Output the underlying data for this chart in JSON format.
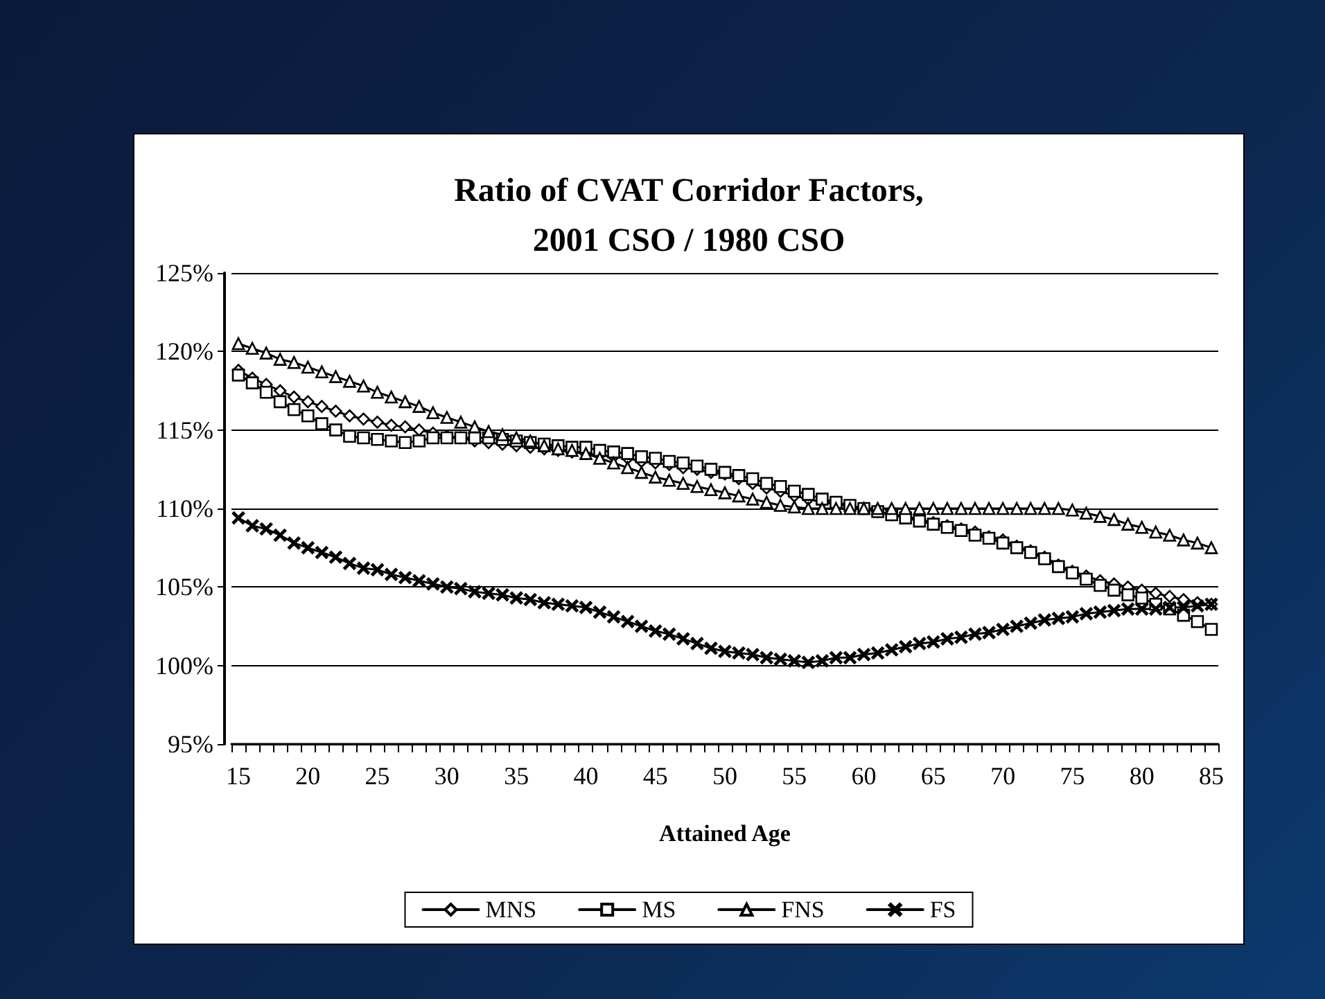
{
  "chart_data": {
    "type": "line",
    "title": "Ratio of CVAT Corridor Factors,\n2001 CSO / 1980 CSO",
    "xlabel": "Attained Age",
    "categories": [
      "15",
      null,
      null,
      null,
      null,
      "20",
      null,
      null,
      null,
      null,
      "25",
      null,
      null,
      null,
      null,
      "30",
      null,
      null,
      null,
      null,
      "35",
      null,
      null,
      null,
      null,
      "40",
      null,
      null,
      null,
      null,
      "45",
      null,
      null,
      null,
      null,
      "50",
      null,
      null,
      null,
      null,
      "55",
      null,
      null,
      null,
      null,
      "60",
      null,
      null,
      null,
      null,
      "65",
      null,
      null,
      null,
      null,
      "70",
      null,
      null,
      null,
      null,
      "75",
      null,
      null,
      null,
      null,
      "80",
      null,
      null,
      null,
      null,
      "85"
    ],
    "ylim": [
      95,
      125
    ],
    "yticks": [
      {
        "value": 95,
        "label": "95%"
      },
      {
        "value": 100,
        "label": "100%"
      },
      {
        "value": 105,
        "label": "105%"
      },
      {
        "value": 110,
        "label": "110%"
      },
      {
        "value": 115,
        "label": "115%"
      },
      {
        "value": 120,
        "label": "120%"
      },
      {
        "value": 125,
        "label": "125%"
      }
    ],
    "grid": "y",
    "legend": "bottom",
    "line_style": "solid",
    "series": [
      {
        "name": "MNS",
        "color": "#000000",
        "marker": "diamond",
        "values": [
          118.8,
          118.3,
          117.9,
          117.5,
          117.1,
          116.8,
          116.5,
          116.2,
          115.9,
          115.7,
          115.5,
          115.3,
          115.2,
          115.0,
          114.8,
          114.6,
          114.5,
          114.3,
          114.2,
          114.1,
          114.0,
          113.9,
          113.8,
          113.7,
          113.6,
          113.5,
          113.4,
          113.3,
          113.2,
          113.0,
          112.9,
          112.8,
          112.6,
          112.5,
          112.3,
          112.2,
          111.9,
          111.6,
          111.3,
          111.1,
          110.8,
          110.6,
          110.4,
          110.3,
          110.1,
          110.0,
          109.8,
          109.6,
          109.5,
          109.3,
          109.1,
          108.9,
          108.7,
          108.5,
          108.2,
          108.0,
          107.6,
          107.3,
          106.9,
          106.4,
          106.0,
          105.7,
          105.4,
          105.2,
          105.0,
          104.8,
          104.6,
          104.4,
          104.2,
          104.0,
          103.9
        ]
      },
      {
        "name": "MS",
        "color": "#000000",
        "marker": "square",
        "values": [
          118.5,
          118.0,
          117.4,
          116.8,
          116.3,
          115.9,
          115.4,
          115.0,
          114.6,
          114.5,
          114.4,
          114.3,
          114.2,
          114.3,
          114.5,
          114.5,
          114.5,
          114.5,
          114.5,
          114.4,
          114.3,
          114.2,
          114.1,
          114.0,
          113.9,
          113.9,
          113.7,
          113.6,
          113.5,
          113.3,
          113.2,
          113.0,
          112.9,
          112.7,
          112.5,
          112.3,
          112.1,
          111.9,
          111.6,
          111.4,
          111.1,
          110.9,
          110.6,
          110.4,
          110.2,
          110.0,
          109.8,
          109.6,
          109.4,
          109.2,
          109.0,
          108.8,
          108.6,
          108.3,
          108.1,
          107.8,
          107.5,
          107.2,
          106.8,
          106.3,
          105.9,
          105.5,
          105.1,
          104.8,
          104.5,
          104.3,
          103.9,
          103.6,
          103.2,
          102.8,
          102.3
        ]
      },
      {
        "name": "FNS",
        "color": "#000000",
        "marker": "triangle",
        "values": [
          120.5,
          120.2,
          119.9,
          119.5,
          119.3,
          119.0,
          118.7,
          118.4,
          118.1,
          117.8,
          117.4,
          117.1,
          116.8,
          116.5,
          116.1,
          115.8,
          115.5,
          115.2,
          114.9,
          114.7,
          114.5,
          114.3,
          114.0,
          113.8,
          113.7,
          113.5,
          113.2,
          112.9,
          112.6,
          112.3,
          112.0,
          111.8,
          111.6,
          111.4,
          111.2,
          111.0,
          110.8,
          110.6,
          110.4,
          110.2,
          110.1,
          110.0,
          110.0,
          110.0,
          110.0,
          110.0,
          110.0,
          110.0,
          110.0,
          110.0,
          110.0,
          110.0,
          110.0,
          110.0,
          110.0,
          110.0,
          110.0,
          110.0,
          110.0,
          110.0,
          109.9,
          109.7,
          109.5,
          109.3,
          109.0,
          108.8,
          108.5,
          108.3,
          108.0,
          107.8,
          107.5
        ]
      },
      {
        "name": "FS",
        "color": "#000000",
        "marker": "cross",
        "values": [
          109.4,
          108.9,
          108.7,
          108.3,
          107.8,
          107.5,
          107.2,
          106.9,
          106.5,
          106.2,
          106.1,
          105.8,
          105.6,
          105.4,
          105.2,
          105.0,
          104.9,
          104.7,
          104.6,
          104.5,
          104.3,
          104.2,
          104.0,
          103.9,
          103.8,
          103.7,
          103.4,
          103.1,
          102.8,
          102.5,
          102.2,
          102.0,
          101.7,
          101.4,
          101.1,
          100.9,
          100.8,
          100.7,
          100.5,
          100.4,
          100.3,
          100.2,
          100.3,
          100.5,
          100.5,
          100.7,
          100.8,
          101.0,
          101.2,
          101.4,
          101.5,
          101.7,
          101.8,
          102.0,
          102.1,
          102.3,
          102.5,
          102.7,
          102.9,
          103.0,
          103.1,
          103.3,
          103.4,
          103.5,
          103.6,
          103.6,
          103.6,
          103.7,
          103.7,
          103.8,
          103.9
        ]
      }
    ]
  }
}
